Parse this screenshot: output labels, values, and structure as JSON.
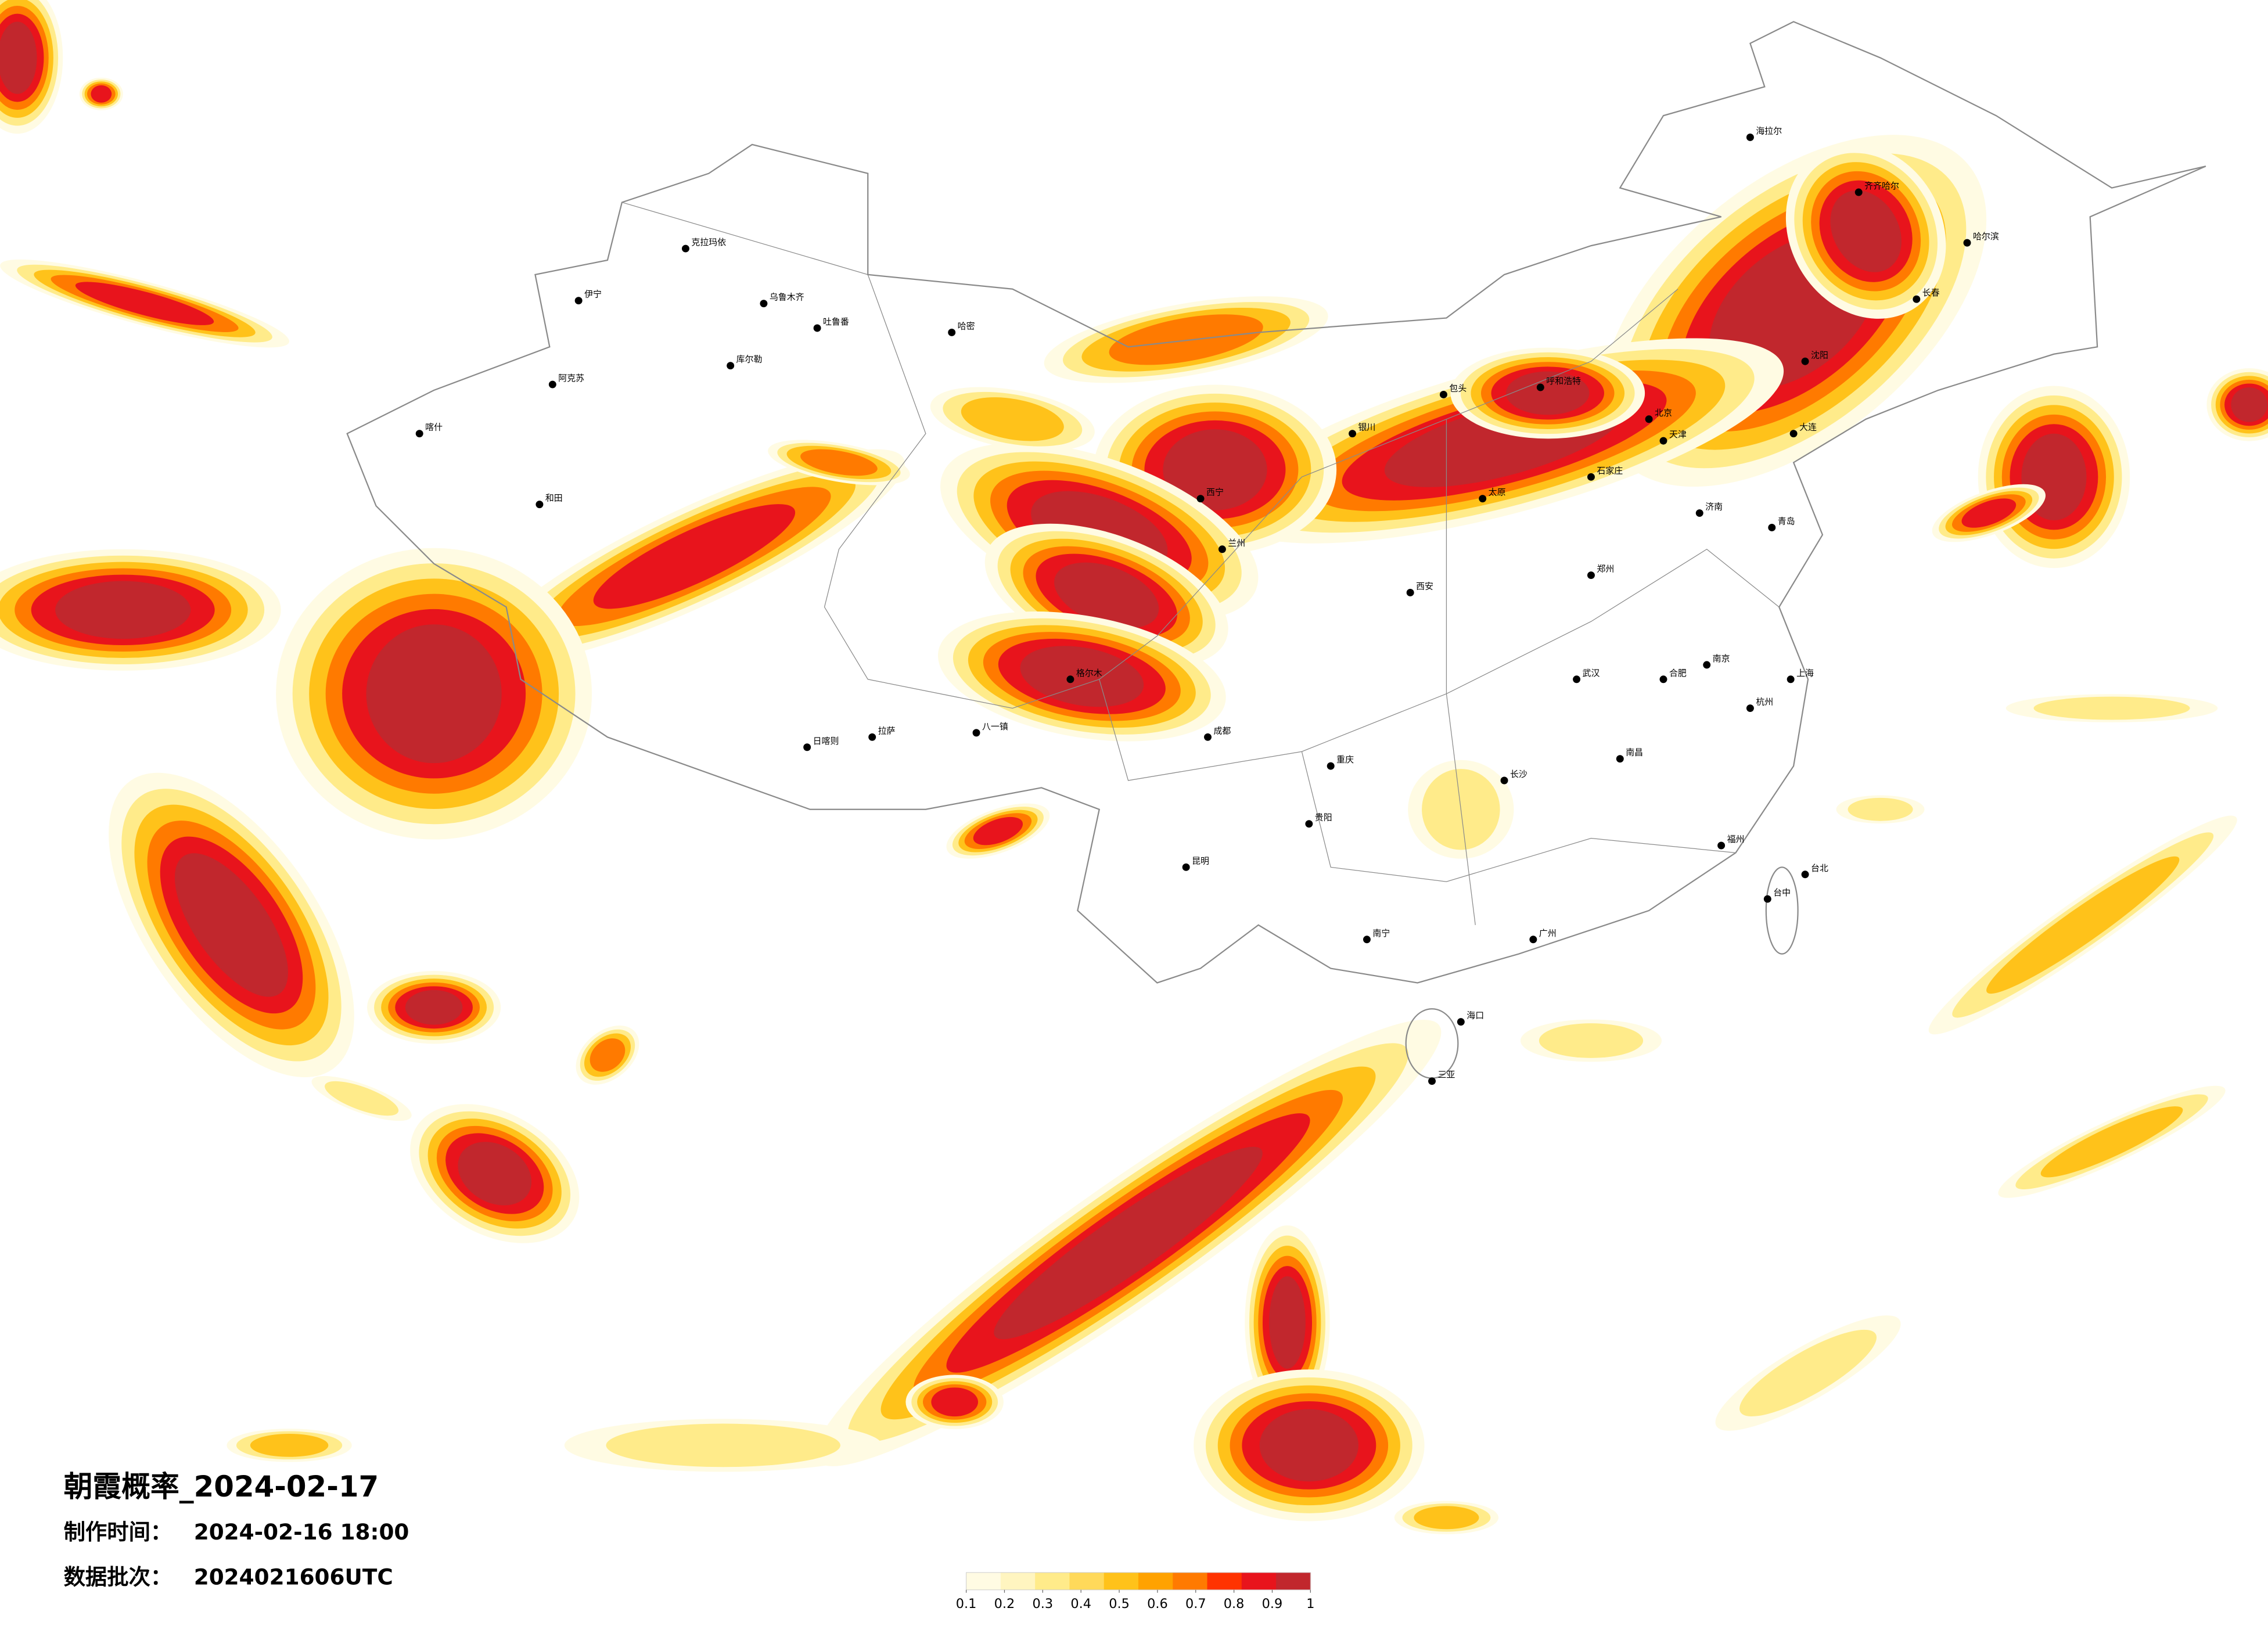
{
  "map": {
    "title": "朝霞概率_2024-02-17",
    "info": [
      {
        "label": "制作时间：",
        "value": "2024-02-16 18:00"
      },
      {
        "label": "数据批次：",
        "value": "2024021606UTC"
      }
    ],
    "legend": {
      "colors": [
        "#fffbe3",
        "#fff5c0",
        "#ffeb8a",
        "#ffd95a",
        "#ffc21a",
        "#ffa200",
        "#ff7a00",
        "#ff3300",
        "#e8141c",
        "#c1272d"
      ],
      "ticks": [
        0.1,
        0.2,
        0.3,
        0.4,
        0.5,
        0.6,
        0.7,
        0.8,
        0.9,
        1
      ]
    },
    "cities": [
      "克拉玛依",
      "乌鲁木齐",
      "吐鲁番",
      "哈密",
      "库尔勒",
      "阿克苏",
      "和田",
      "喀什",
      "伊宁",
      "拉萨",
      "日喀则",
      "八一镇",
      "格尔木",
      "西宁",
      "兰州",
      "银川",
      "呼和浩特",
      "包头",
      "太原",
      "石家庄",
      "郑州",
      "济南",
      "西安",
      "成都",
      "重庆",
      "武汉",
      "长沙",
      "南昌",
      "贵阳",
      "昆明",
      "南宁",
      "广州",
      "海口",
      "三亚",
      "福州",
      "台北",
      "台中",
      "杭州",
      "上海",
      "南京",
      "合肥",
      "沈阳",
      "长春",
      "哈尔滨",
      "齐齐哈尔",
      "海拉尔",
      "大连",
      "青岛",
      "天津",
      "北京"
    ]
  }
}
